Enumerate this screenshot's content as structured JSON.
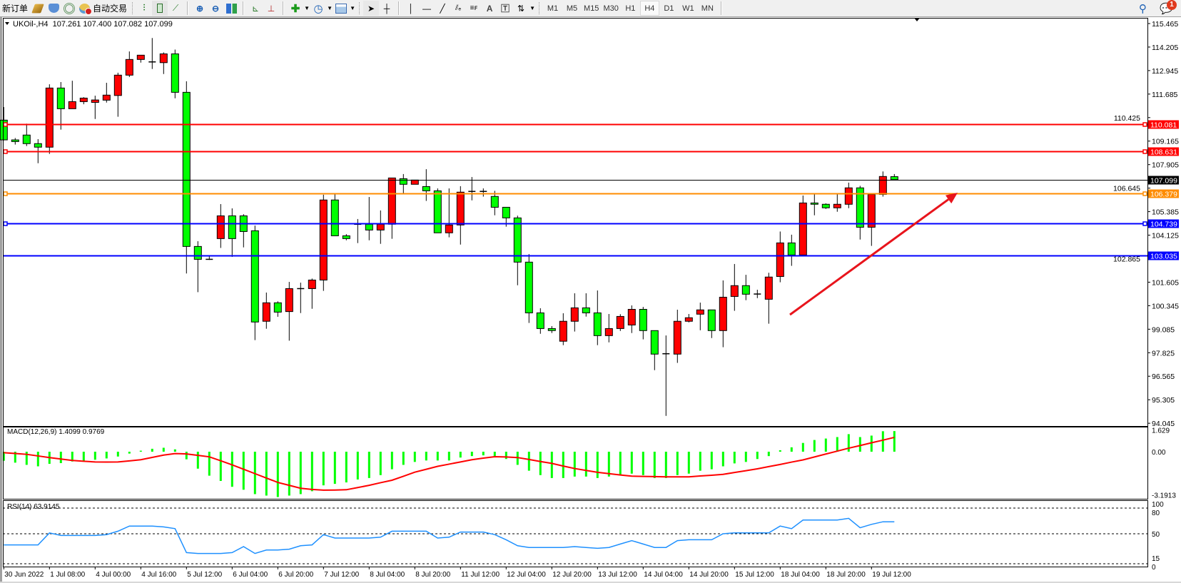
{
  "toolbar": {
    "new_order": "新订单",
    "auto_trading": "自动交易",
    "timeframes": [
      "M1",
      "M5",
      "M15",
      "M30",
      "H1",
      "H4",
      "D1",
      "W1",
      "MN"
    ],
    "active_timeframe": "H4",
    "notification_count": "1",
    "icons": [
      "gold-bars-icon",
      "market-cloud-icon",
      "signals-icon",
      "auto-trading-icon",
      "bar-chart-icon",
      "candlestick-chart-icon",
      "line-chart-icon",
      "zoom-in-icon",
      "zoom-out-icon",
      "tile-windows-icon",
      "auto-scroll-icon",
      "chart-shift-icon",
      "new-indicator-icon",
      "periods-clock-icon",
      "templates-icon",
      "cursor-icon",
      "crosshair-icon",
      "vertical-line-icon",
      "horizontal-line-icon",
      "trendline-icon",
      "equidistant-channel-icon",
      "fibonacci-icon",
      "text-icon",
      "text-label-icon",
      "arrows-icon",
      "search-icon",
      "chat-notification-icon"
    ]
  },
  "chart": {
    "header": "UKOil-,H4  107.261 107.400 107.082 107.099"
  },
  "chart_data": {
    "type": "candlestick",
    "symbol": "UKOil-",
    "timeframe": "H4",
    "last_bar_ohlc": {
      "open": 107.261,
      "high": 107.4,
      "low": 107.082,
      "close": 107.099
    },
    "up_color": "#ff0000",
    "down_color": "#00ff00",
    "ylim": [
      94.045,
      115.465
    ],
    "price_ticks": [
      "115.465",
      "114.205",
      "112.945",
      "111.685",
      "110.425",
      "109.165",
      "107.905",
      "106.645",
      "105.385",
      "104.125",
      "102.865",
      "101.605",
      "100.345",
      "99.085",
      "97.825",
      "96.565",
      "95.305",
      "94.045"
    ],
    "x_tick_labels": [
      "30 Jun 2022",
      "1 Jul 08:00",
      "4 Jul 00:00",
      "4 Jul 16:00",
      "5 Jul 12:00",
      "6 Jul 04:00",
      "6 Jul 20:00",
      "7 Jul 12:00",
      "8 Jul 04:00",
      "8 Jul 20:00",
      "11 Jul 12:00",
      "12 Jul 04:00",
      "12 Jul 20:00",
      "13 Jul 12:00",
      "14 Jul 04:00",
      "14 Jul 20:00",
      "15 Jul 12:00",
      "18 Jul 04:00",
      "18 Jul 20:00",
      "19 Jul 12:00"
    ],
    "candles_ohlc": [
      [
        110.29,
        110.99,
        109.2,
        109.23
      ],
      [
        109.23,
        109.33,
        108.98,
        109.14
      ],
      [
        109.49,
        110.1,
        108.9,
        109.03
      ],
      [
        109.03,
        109.27,
        107.98,
        108.84
      ],
      [
        108.84,
        112.21,
        108.48,
        112.01
      ],
      [
        112.01,
        112.33,
        109.78,
        110.9
      ],
      [
        110.9,
        112.4,
        110.9,
        111.28
      ],
      [
        111.28,
        111.52,
        111.14,
        111.47
      ],
      [
        111.24,
        111.6,
        110.35,
        111.37
      ],
      [
        111.36,
        112.29,
        111.23,
        111.63
      ],
      [
        111.61,
        112.83,
        110.47,
        112.7
      ],
      [
        112.7,
        113.97,
        112.6,
        113.54
      ],
      [
        113.54,
        113.77,
        113.37,
        113.77
      ],
      [
        113.41,
        114.69,
        113.03,
        113.41
      ],
      [
        113.37,
        113.92,
        112.76,
        113.84
      ],
      [
        113.84,
        114.07,
        111.46,
        111.78
      ],
      [
        111.78,
        112.37,
        102.07,
        103.52
      ],
      [
        103.52,
        103.8,
        101.07,
        102.83
      ],
      [
        102.83,
        103.02,
        102.8,
        102.83
      ],
      [
        103.94,
        105.79,
        103.44,
        105.16
      ],
      [
        105.16,
        105.56,
        102.96,
        103.94
      ],
      [
        105.16,
        105.25,
        103.47,
        104.32
      ],
      [
        104.36,
        104.64,
        98.5,
        99.47
      ],
      [
        99.51,
        101.05,
        99.11,
        100.5
      ],
      [
        100.5,
        100.58,
        99.75,
        100.0
      ],
      [
        100.03,
        101.62,
        98.47,
        101.26
      ],
      [
        101.26,
        101.58,
        99.95,
        101.26
      ],
      [
        101.26,
        101.8,
        100.18,
        101.72
      ],
      [
        101.72,
        106.29,
        101.14,
        106.01
      ],
      [
        106.01,
        106.33,
        104.09,
        104.09
      ],
      [
        104.09,
        104.18,
        103.85,
        103.94
      ],
      [
        104.71,
        104.99,
        103.7,
        104.71
      ],
      [
        104.71,
        106.17,
        103.85,
        104.4
      ],
      [
        104.4,
        105.45,
        103.66,
        104.71
      ],
      [
        104.71,
        107.19,
        103.93,
        107.19
      ],
      [
        107.15,
        107.4,
        106.34,
        106.85
      ],
      [
        106.85,
        107.08,
        106.85,
        107.08
      ],
      [
        106.73,
        107.66,
        105.96,
        106.5
      ],
      [
        106.5,
        106.63,
        104.25,
        104.25
      ],
      [
        104.25,
        106.63,
        104.01,
        104.67
      ],
      [
        104.67,
        106.75,
        103.62,
        106.43
      ],
      [
        106.47,
        107.24,
        105.99,
        106.47
      ],
      [
        106.47,
        106.63,
        106.19,
        106.47
      ],
      [
        106.2,
        106.5,
        105.19,
        105.62
      ],
      [
        105.62,
        105.62,
        104.58,
        105.05
      ],
      [
        105.05,
        105.17,
        101.44,
        102.68
      ],
      [
        102.68,
        103.11,
        99.42,
        99.96
      ],
      [
        99.96,
        100.21,
        98.84,
        99.12
      ],
      [
        99.12,
        99.25,
        98.88,
        99.01
      ],
      [
        98.44,
        99.94,
        98.23,
        99.51
      ],
      [
        99.51,
        101.01,
        98.96,
        100.23
      ],
      [
        100.23,
        101.01,
        99.76,
        99.96
      ],
      [
        99.96,
        101.16,
        98.23,
        98.74
      ],
      [
        98.74,
        99.9,
        98.38,
        99.12
      ],
      [
        99.12,
        99.89,
        98.99,
        99.77
      ],
      [
        99.31,
        100.36,
        98.88,
        100.15
      ],
      [
        100.15,
        100.28,
        98.54,
        99.01
      ],
      [
        99.01,
        99.01,
        96.89,
        97.75
      ],
      [
        97.77,
        98.75,
        94.44,
        97.77
      ],
      [
        97.75,
        100.13,
        97.28,
        99.51
      ],
      [
        99.51,
        99.9,
        99.45,
        99.7
      ],
      [
        99.89,
        100.51,
        99.03,
        100.12
      ],
      [
        100.12,
        100.12,
        98.61,
        99.01
      ],
      [
        99.01,
        101.7,
        98.12,
        100.8
      ],
      [
        100.84,
        102.58,
        100.07,
        101.42
      ],
      [
        101.42,
        102.0,
        100.64,
        100.96
      ],
      [
        100.97,
        101.2,
        100.75,
        100.97
      ],
      [
        100.69,
        102.11,
        99.38,
        101.88
      ],
      [
        101.91,
        104.32,
        101.6,
        103.71
      ],
      [
        103.71,
        104.15,
        102.48,
        103.06
      ],
      [
        103.06,
        106.25,
        103.06,
        105.85
      ],
      [
        105.85,
        106.38,
        105.19,
        105.78
      ],
      [
        105.78,
        105.83,
        105.53,
        105.59
      ],
      [
        105.59,
        106.38,
        105.38,
        105.78
      ],
      [
        105.78,
        106.94,
        105.57,
        106.66
      ],
      [
        106.66,
        106.77,
        103.89,
        104.55
      ],
      [
        104.55,
        106.35,
        103.55,
        106.31
      ],
      [
        106.31,
        107.54,
        106.19,
        107.27
      ],
      [
        107.261,
        107.4,
        107.082,
        107.099
      ]
    ],
    "horizontal_lines": [
      {
        "price": 110.081,
        "label": "110.081",
        "color": "#ff0000",
        "markers": true
      },
      {
        "price": 108.631,
        "label": "108.631",
        "color": "#ff0000",
        "markers": true
      },
      {
        "price": 107.099,
        "label": "107.099",
        "color": "#000000",
        "markers": false
      },
      {
        "price": 106.379,
        "label": "106.379",
        "color": "#ff8c00",
        "markers": true
      },
      {
        "price": 104.739,
        "label": "104.739",
        "color": "#0000ff",
        "markers": true
      },
      {
        "price": 103.035,
        "label": "103.035",
        "color": "#0000ff",
        "markers": false
      }
    ],
    "trend_arrow": {
      "color": "#e8141c",
      "direction": "up-right"
    },
    "macd": {
      "label": "MACD(12,26,9) 1.4099 0.9769",
      "ticks": [
        "1.629",
        "0.00",
        "-3.1913"
      ],
      "ylim": [
        -3.1913,
        1.629
      ],
      "histogram_color": "#00ff00",
      "signal_color": "#ff0000",
      "histogram": [
        -0.62,
        -0.75,
        -0.9,
        -1.0,
        -0.83,
        -0.78,
        -0.67,
        -0.62,
        -0.55,
        -0.46,
        -0.33,
        -0.13,
        0.07,
        0.2,
        0.27,
        0.16,
        -0.52,
        -1.16,
        -1.64,
        -2.0,
        -2.4,
        -2.6,
        -2.9,
        -3.0,
        -3.1,
        -3.0,
        -2.9,
        -2.7,
        -2.3,
        -2.2,
        -2.1,
        -1.9,
        -1.8,
        -1.6,
        -1.2,
        -0.9,
        -0.7,
        -0.6,
        -0.6,
        -0.6,
        -0.4,
        -0.3,
        -0.25,
        -0.3,
        -0.5,
        -0.9,
        -1.3,
        -1.6,
        -1.8,
        -1.8,
        -1.7,
        -1.7,
        -1.8,
        -1.7,
        -1.6,
        -1.5,
        -1.6,
        -1.8,
        -1.8,
        -1.6,
        -1.5,
        -1.3,
        -1.2,
        -1.0,
        -0.8,
        -0.7,
        -0.5,
        -0.3,
        0.1,
        0.3,
        0.6,
        0.8,
        0.9,
        1.0,
        1.2,
        1.0,
        1.1,
        1.4,
        1.41
      ],
      "signal": [
        -0.07,
        -0.12,
        -0.18,
        -0.29,
        -0.4,
        -0.5,
        -0.6,
        -0.65,
        -0.7,
        -0.71,
        -0.7,
        -0.63,
        -0.55,
        -0.39,
        -0.23,
        -0.13,
        -0.15,
        -0.25,
        -0.35,
        -0.62,
        -0.9,
        -1.2,
        -1.5,
        -1.8,
        -2.1,
        -2.3,
        -2.5,
        -2.58,
        -2.63,
        -2.62,
        -2.6,
        -2.45,
        -2.3,
        -2.12,
        -1.95,
        -1.68,
        -1.4,
        -1.2,
        -1.0,
        -0.85,
        -0.7,
        -0.55,
        -0.44,
        -0.34,
        -0.36,
        -0.4,
        -0.53,
        -0.67,
        -0.8,
        -0.98,
        -1.15,
        -1.28,
        -1.41,
        -1.5,
        -1.59,
        -1.67,
        -1.69,
        -1.7,
        -1.72,
        -1.72,
        -1.72,
        -1.66,
        -1.61,
        -1.55,
        -1.42,
        -1.3,
        -1.17,
        -1.02,
        -0.87,
        -0.71,
        -0.56,
        -0.36,
        -0.16,
        0.04,
        0.24,
        0.42,
        0.61,
        0.79,
        0.98
      ]
    },
    "rsi": {
      "label": "RSI(14) 63.9145",
      "ticks": [
        "100",
        "80",
        "50",
        "15",
        "0"
      ],
      "levels": [
        80,
        50,
        15
      ],
      "ylim": [
        0,
        100
      ],
      "line_color": "#1e90ff",
      "values": [
        37,
        37,
        37,
        37,
        51,
        48,
        48,
        48,
        48,
        49,
        53,
        59,
        59,
        59,
        58,
        56,
        28,
        27,
        27,
        27,
        28,
        35,
        27,
        31,
        31,
        32,
        36,
        37,
        49,
        45,
        45,
        45,
        45,
        46,
        53,
        53,
        53,
        53,
        45,
        46,
        52,
        52,
        52,
        49,
        43,
        36,
        34,
        34,
        34,
        34,
        35,
        34,
        33,
        34,
        38,
        42,
        38,
        34,
        34,
        42,
        43,
        43,
        43,
        50,
        51,
        51,
        51,
        51,
        59,
        56,
        66,
        66,
        66,
        66,
        68,
        57,
        61,
        64,
        63.9145
      ]
    }
  }
}
